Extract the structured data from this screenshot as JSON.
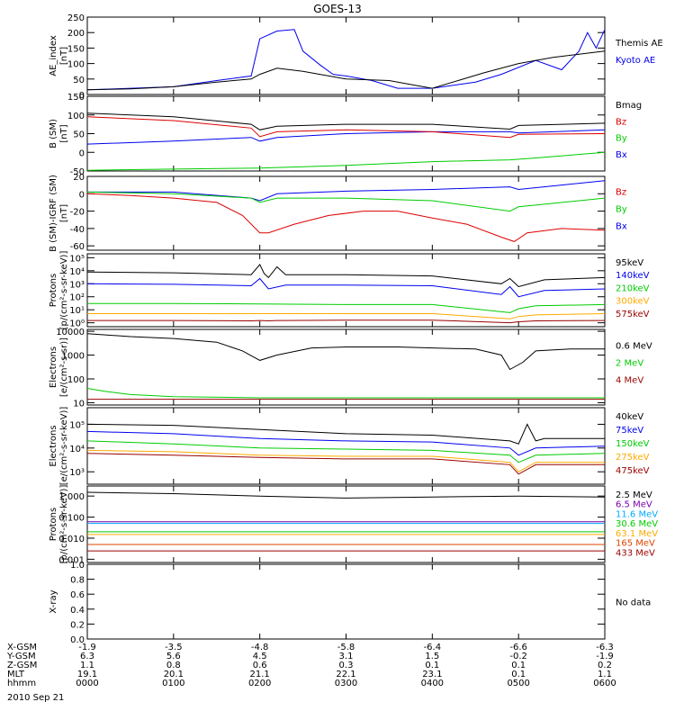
{
  "title": "GOES-13",
  "footer": {
    "row_labels": [
      "X-GSM",
      "Y-GSM",
      "Z-GSM",
      "MLT",
      "hhmm"
    ],
    "columns": [
      [
        "-1.9",
        "6.3",
        "1.1",
        "19.1",
        "0000"
      ],
      [
        "-3.5",
        "5.6",
        "0.8",
        "20.1",
        "0100"
      ],
      [
        "-4.8",
        "4.5",
        "0.6",
        "21.1",
        "0200"
      ],
      [
        "-5.8",
        "3.1",
        "0.3",
        "22.1",
        "0300"
      ],
      [
        "-6.4",
        "1.5",
        "0.1",
        "23.1",
        "0400"
      ],
      [
        "-6.6",
        "-0.2",
        "0.1",
        "0.1",
        "0500"
      ],
      [
        "-6.3",
        "-1.9",
        "0.2",
        "1.1",
        "0600"
      ]
    ],
    "date": "2010 Sep 21"
  },
  "chart_data": [
    {
      "type": "line",
      "ylabel": [
        "AE_index",
        "[nT]"
      ],
      "scale": "linear",
      "ylim": [
        0,
        250
      ],
      "yticks": [
        "0",
        "50",
        "100",
        "150",
        "200",
        "250"
      ],
      "yticks_values": [
        0,
        50,
        100,
        150,
        200,
        250
      ],
      "series": [
        {
          "name": "Kyoto AE",
          "color": "#0000ee",
          "x": [
            0,
            0.5,
            1.0,
            1.5,
            1.9,
            2.0,
            2.2,
            2.4,
            2.5,
            2.7,
            2.85,
            3.0,
            3.3,
            3.6,
            4.0,
            4.5,
            4.8,
            5.2,
            5.5,
            5.7,
            5.8,
            5.9,
            6.0
          ],
          "y": [
            15,
            20,
            25,
            45,
            60,
            180,
            205,
            210,
            140,
            95,
            65,
            60,
            45,
            20,
            20,
            40,
            65,
            110,
            80,
            140,
            200,
            150,
            210
          ]
        },
        {
          "name": "Themis AE",
          "color": "#000000",
          "x": [
            0,
            0.5,
            1.0,
            1.5,
            1.9,
            2.0,
            2.2,
            2.5,
            2.8,
            3.0,
            3.5,
            3.8,
            4.0,
            4.3,
            4.6,
            5.0,
            5.4,
            5.7,
            6.0
          ],
          "y": [
            15,
            18,
            25,
            40,
            50,
            65,
            85,
            75,
            60,
            50,
            45,
            30,
            20,
            45,
            70,
            100,
            120,
            130,
            140
          ]
        }
      ]
    },
    {
      "type": "line",
      "ylabel": [
        "B (SM)",
        "[nT]"
      ],
      "scale": "linear",
      "ylim": [
        -50,
        150
      ],
      "yticks": [
        "-50",
        "0",
        "50",
        "100",
        "150"
      ],
      "yticks_values": [
        -50,
        0,
        50,
        100,
        150
      ],
      "series": [
        {
          "name": "Bx",
          "color": "#0000ee",
          "x": [
            0,
            1,
            1.9,
            2.0,
            2.2,
            3,
            4,
            4.9,
            5.0,
            6.0
          ],
          "y": [
            22,
            30,
            40,
            30,
            40,
            50,
            55,
            55,
            52,
            60
          ]
        },
        {
          "name": "By",
          "color": "#00cc00",
          "x": [
            0,
            1,
            2,
            3,
            4,
            4.9,
            5.2,
            6.0
          ],
          "y": [
            -48,
            -45,
            -42,
            -35,
            -25,
            -20,
            -15,
            0
          ]
        },
        {
          "name": "Bz",
          "color": "#dd0000",
          "x": [
            0,
            1,
            1.9,
            2.0,
            2.2,
            3,
            4,
            4.9,
            5.0,
            6.0
          ],
          "y": [
            95,
            85,
            65,
            42,
            55,
            60,
            55,
            40,
            48,
            50
          ]
        },
        {
          "name": "Bmag",
          "color": "#000000",
          "x": [
            0,
            1,
            1.9,
            2.0,
            2.2,
            3,
            4,
            4.9,
            5.0,
            6.0
          ],
          "y": [
            105,
            95,
            75,
            60,
            70,
            75,
            75,
            62,
            72,
            78
          ]
        }
      ]
    },
    {
      "type": "line",
      "ylabel": [
        "B (SM)-IGRF (SM)",
        "[nT]"
      ],
      "scale": "linear",
      "ylim": [
        -65,
        20
      ],
      "yticks": [
        "-60",
        "-40",
        "-20",
        "0",
        "20"
      ],
      "yticks_values": [
        -60,
        -40,
        -20,
        0,
        20
      ],
      "series": [
        {
          "name": "Bx",
          "color": "#0000ee",
          "x": [
            0,
            1,
            1.9,
            2.0,
            2.2,
            3,
            4,
            4.9,
            5.0,
            5.5,
            6.0
          ],
          "y": [
            2,
            2,
            -5,
            -8,
            0,
            3,
            5,
            8,
            5,
            10,
            15
          ]
        },
        {
          "name": "By",
          "color": "#00cc00",
          "x": [
            0,
            1,
            1.9,
            2.0,
            2.2,
            3,
            4,
            4.9,
            5.0,
            5.3,
            6.0
          ],
          "y": [
            2,
            0,
            -5,
            -10,
            -5,
            -5,
            -8,
            -20,
            -15,
            -12,
            -5
          ]
        },
        {
          "name": "Bz",
          "color": "#dd0000",
          "x": [
            0,
            0.5,
            1.0,
            1.5,
            1.8,
            2.0,
            2.1,
            2.4,
            2.8,
            3.2,
            3.6,
            4.0,
            4.4,
            4.8,
            4.95,
            5.1,
            5.5,
            6.0
          ],
          "y": [
            0,
            -2,
            -5,
            -10,
            -25,
            -45,
            -45,
            -35,
            -25,
            -20,
            -20,
            -28,
            -35,
            -50,
            -55,
            -45,
            -40,
            -42
          ]
        }
      ]
    },
    {
      "type": "line",
      "ylabel": [
        "Protons",
        "[p/(cm²-s-sr-keV)]"
      ],
      "scale": "log",
      "ylim": [
        0.5,
        200000
      ],
      "yticks": [
        "10⁰",
        "10¹",
        "10²",
        "10³",
        "10⁴",
        "10⁵"
      ],
      "yticks_values": [
        1,
        10,
        100,
        1000,
        10000,
        100000
      ],
      "series": [
        {
          "name": "575keV",
          "color": "#990000",
          "x": [
            0,
            1,
            1.9,
            2.0,
            2.1,
            2.2,
            2.3,
            3,
            4,
            4.9,
            5.0,
            5.2,
            6.0
          ],
          "y": [
            1.5,
            1.5,
            1.4,
            1.5,
            1.4,
            1.5,
            1.5,
            1.6,
            1.6,
            1.0,
            1.2,
            1.4,
            1.5
          ]
        },
        {
          "name": "300keV",
          "color": "#ffaa00",
          "x": [
            0,
            1,
            2,
            3,
            4,
            4.9,
            5.0,
            5.2,
            6.0
          ],
          "y": [
            5,
            5,
            5,
            5,
            5,
            2,
            3,
            4,
            5
          ]
        },
        {
          "name": "210keV",
          "color": "#00cc00",
          "x": [
            0,
            1,
            2,
            3,
            4,
            4.9,
            5.0,
            5.2,
            6.0
          ],
          "y": [
            30,
            30,
            28,
            25,
            25,
            6,
            12,
            20,
            25
          ]
        },
        {
          "name": "140keV",
          "color": "#0000ee",
          "x": [
            0,
            1,
            1.9,
            2.0,
            2.1,
            2.3,
            3,
            4,
            4.8,
            4.9,
            5.0,
            5.3,
            6.0
          ],
          "y": [
            1000,
            900,
            700,
            2500,
            400,
            800,
            800,
            700,
            150,
            600,
            100,
            300,
            400
          ]
        },
        {
          "name": "95keV",
          "color": "#000000",
          "x": [
            0,
            1,
            1.9,
            2.0,
            2.05,
            2.1,
            2.2,
            2.3,
            3,
            4,
            4.8,
            4.9,
            5.0,
            5.3,
            6.0
          ],
          "y": [
            8000,
            7000,
            5000,
            30000,
            6000,
            3000,
            20000,
            5000,
            5000,
            4000,
            1000,
            2500,
            600,
            2000,
            3000
          ]
        }
      ]
    },
    {
      "type": "line",
      "ylabel": [
        "Electrons",
        "[e/(cm²-s-sr)]"
      ],
      "scale": "log",
      "ylim": [
        8,
        12000
      ],
      "yticks": [
        "10",
        "100",
        "1000",
        "10000"
      ],
      "yticks_values": [
        10,
        100,
        1000,
        10000
      ],
      "series": [
        {
          "name": "4 MeV",
          "color": "#990000",
          "x": [
            0,
            6
          ],
          "y": [
            14,
            14
          ]
        },
        {
          "name": "2 MeV",
          "color": "#00cc00",
          "x": [
            0,
            0.2,
            0.5,
            1,
            2,
            6
          ],
          "y": [
            40,
            30,
            22,
            18,
            16,
            16
          ]
        },
        {
          "name": "0.6 MeV",
          "color": "#000000",
          "x": [
            0,
            0.5,
            1,
            1.5,
            1.8,
            2.0,
            2.2,
            2.6,
            3.0,
            3.6,
            4.0,
            4.5,
            4.8,
            4.9,
            5.05,
            5.2,
            5.6,
            6.0
          ],
          "y": [
            8000,
            6000,
            5000,
            3500,
            1500,
            600,
            1000,
            2000,
            2200,
            2200,
            2000,
            1800,
            1000,
            250,
            500,
            1500,
            1800,
            1800
          ]
        }
      ]
    },
    {
      "type": "line",
      "ylabel": [
        "Electrons",
        "[e/(cm²-s-sr-keV)]"
      ],
      "scale": "log",
      "ylim": [
        300,
        500000
      ],
      "yticks": [
        "10³",
        "10⁴",
        "10⁵"
      ],
      "yticks_values": [
        1000,
        10000,
        100000
      ],
      "series": [
        {
          "name": "475keV",
          "color": "#990000",
          "x": [
            0,
            1,
            2,
            3,
            4,
            4.9,
            5.0,
            5.2,
            6.0
          ],
          "y": [
            6000,
            5000,
            4000,
            3500,
            3500,
            2000,
            800,
            2000,
            2000
          ]
        },
        {
          "name": "275keV",
          "color": "#ffaa00",
          "x": [
            0,
            1,
            2,
            3,
            4,
            4.9,
            5.0,
            5.2,
            6.0
          ],
          "y": [
            8000,
            7000,
            5000,
            4500,
            4500,
            2500,
            1000,
            2500,
            2500
          ]
        },
        {
          "name": "150keV",
          "color": "#00cc00",
          "x": [
            0,
            1,
            2,
            3,
            4,
            4.9,
            5.0,
            5.2,
            6.0
          ],
          "y": [
            20000,
            15000,
            10000,
            9000,
            8000,
            5000,
            2500,
            5000,
            6000
          ]
        },
        {
          "name": "75keV",
          "color": "#0000ee",
          "x": [
            0,
            1,
            2,
            3,
            4,
            4.9,
            5.0,
            5.2,
            6.0
          ],
          "y": [
            50000,
            40000,
            25000,
            20000,
            18000,
            10000,
            5000,
            10000,
            12000
          ]
        },
        {
          "name": "40keV",
          "color": "#000000",
          "x": [
            0,
            1,
            2,
            3,
            4,
            4.9,
            5.0,
            5.1,
            5.2,
            5.3,
            6.0
          ],
          "y": [
            100000,
            90000,
            60000,
            40000,
            35000,
            20000,
            15000,
            100000,
            20000,
            25000,
            25000
          ]
        }
      ]
    },
    {
      "type": "line",
      "ylabel": [
        "Protons",
        "[p/(cm²-s-sr-keV)]"
      ],
      "scale": "log",
      "ylim": [
        0.0007,
        3
      ],
      "yticks": [
        "0.001",
        "0.010",
        "0.100",
        "1.000"
      ],
      "yticks_values": [
        0.001,
        0.01,
        0.1,
        1
      ],
      "series": [
        {
          "name": "433 MeV",
          "color": "#990000",
          "x": [
            0,
            6
          ],
          "y": [
            0.0025,
            0.0025
          ]
        },
        {
          "name": "165 MeV",
          "color": "#dd4400",
          "x": [
            0,
            6
          ],
          "y": [
            0.005,
            0.005
          ]
        },
        {
          "name": "63.1 MeV",
          "color": "#ffaa00",
          "x": [
            0,
            6
          ],
          "y": [
            0.015,
            0.015
          ]
        },
        {
          "name": "30.6 MeV",
          "color": "#00cc00",
          "x": [
            0,
            6
          ],
          "y": [
            0.02,
            0.02
          ]
        },
        {
          "name": "11.6 MeV",
          "color": "#00aaff",
          "x": [
            0,
            6
          ],
          "y": [
            0.05,
            0.05
          ]
        },
        {
          "name": "6.5 MeV",
          "color": "#7700aa",
          "x": [
            0,
            6
          ],
          "y": [
            0.06,
            0.06
          ]
        },
        {
          "name": "2.5 MeV",
          "color": "#000000",
          "x": [
            0,
            1,
            2,
            3,
            4,
            5,
            6
          ],
          "y": [
            1.5,
            1.3,
            1.0,
            0.8,
            0.9,
            1.0,
            0.9
          ]
        }
      ]
    },
    {
      "type": "line",
      "ylabel": [
        "X-ray",
        ""
      ],
      "scale": "linear",
      "ylim": [
        0,
        1
      ],
      "yticks": [
        "0.0",
        "0.2",
        "0.4",
        "0.6",
        "0.8",
        "1.0"
      ],
      "yticks_values": [
        0,
        0.2,
        0.4,
        0.6,
        0.8,
        1.0
      ],
      "note": "No data",
      "series": []
    }
  ]
}
